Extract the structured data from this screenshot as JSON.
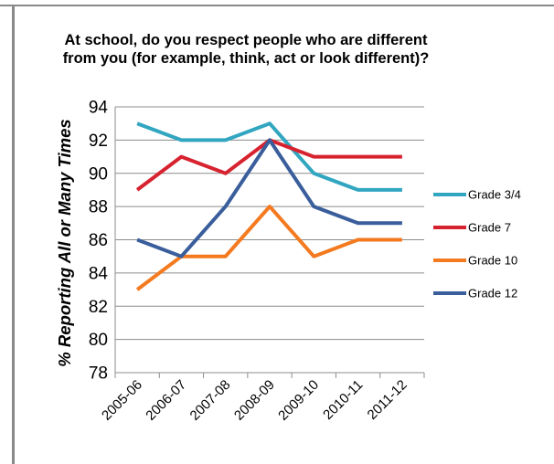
{
  "chart_data": {
    "type": "line",
    "title": "At school, do you respect people who are different from you (for example, think, act or look different)?",
    "xlabel": "",
    "ylabel": "% Reporting All or Many Times",
    "ylim": [
      78,
      94
    ],
    "yticks": [
      78,
      80,
      82,
      84,
      86,
      88,
      90,
      92,
      94
    ],
    "grid": true,
    "legend_position": "right",
    "categories": [
      "2005-06",
      "2006-07",
      "2007-08",
      "2008-09",
      "2009-10",
      "2010-11",
      "2011-12"
    ],
    "series": [
      {
        "name": "Grade 3/4",
        "color": "#31A6C0",
        "values": [
          93,
          92,
          92,
          93,
          90,
          89,
          89
        ]
      },
      {
        "name": "Grade 7",
        "color": "#D7232F",
        "values": [
          89,
          91,
          90,
          92,
          91,
          91,
          91
        ]
      },
      {
        "name": "Grade 10",
        "color": "#F47A20",
        "values": [
          83,
          85,
          85,
          88,
          85,
          86,
          86
        ]
      },
      {
        "name": "Grade 12",
        "color": "#3A5E9C",
        "values": [
          86,
          85,
          88,
          92,
          88,
          87,
          87
        ]
      }
    ]
  }
}
